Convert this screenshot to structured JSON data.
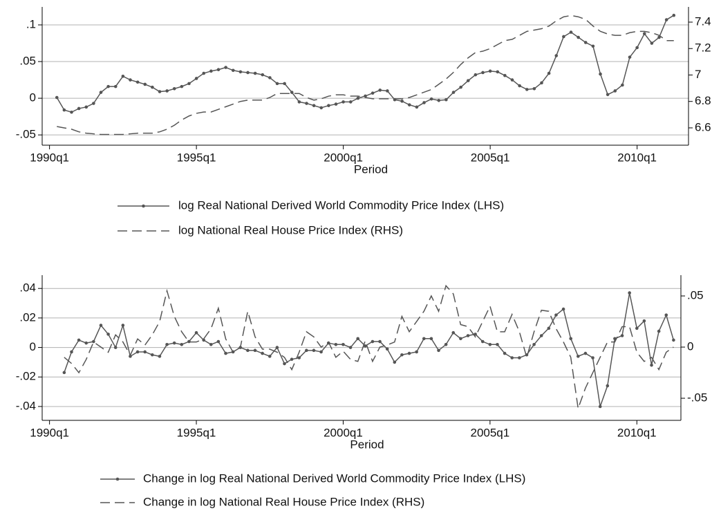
{
  "chart_data": [
    {
      "type": "line",
      "xlabel": "Period",
      "grid": true,
      "x": [
        "1990q2",
        "1990q3",
        "1990q4",
        "1991q1",
        "1991q2",
        "1991q3",
        "1991q4",
        "1992q1",
        "1992q2",
        "1992q3",
        "1992q4",
        "1993q1",
        "1993q2",
        "1993q3",
        "1993q4",
        "1994q1",
        "1994q2",
        "1994q3",
        "1994q4",
        "1995q1",
        "1995q2",
        "1995q3",
        "1995q4",
        "1996q1",
        "1996q2",
        "1996q3",
        "1996q4",
        "1997q1",
        "1997q2",
        "1997q3",
        "1997q4",
        "1998q1",
        "1998q2",
        "1998q3",
        "1998q4",
        "1999q1",
        "1999q2",
        "1999q3",
        "1999q4",
        "2000q1",
        "2000q2",
        "2000q3",
        "2000q4",
        "2001q1",
        "2001q2",
        "2001q3",
        "2001q4",
        "2002q1",
        "2002q2",
        "2002q3",
        "2002q4",
        "2003q1",
        "2003q2",
        "2003q3",
        "2003q4",
        "2004q1",
        "2004q2",
        "2004q3",
        "2004q4",
        "2005q1",
        "2005q2",
        "2005q3",
        "2005q4",
        "2006q1",
        "2006q2",
        "2006q3",
        "2006q4",
        "2007q1",
        "2007q2",
        "2007q3",
        "2007q4",
        "2008q1",
        "2008q2",
        "2008q3",
        "2008q4",
        "2009q1",
        "2009q2",
        "2009q3",
        "2009q4",
        "2010q1",
        "2010q2",
        "2010q3",
        "2010q4",
        "2011q1",
        "2011q2"
      ],
      "xlim": [
        "1989q4",
        "2011q4"
      ],
      "xticks": [
        {
          "value": "1990q1",
          "label": "1990q1"
        },
        {
          "value": "1995q1",
          "label": "1995q1"
        },
        {
          "value": "2000q1",
          "label": "2000q1"
        },
        {
          "value": "2005q1",
          "label": "2005q1"
        },
        {
          "value": "2010q1",
          "label": "2010q1"
        }
      ],
      "ylim": [
        -0.064,
        0.1245
      ],
      "yticks": [
        {
          "value": -0.05,
          "label": "-.05"
        },
        0,
        {
          "value": 0.05,
          "label": ".05"
        },
        {
          "value": 0.1,
          "label": ".1"
        }
      ],
      "y2lim": [
        6.469,
        7.515
      ],
      "y2ticks": [
        6.6,
        6.8,
        7,
        7.2,
        7.4
      ],
      "series": [
        {
          "name": "log Real National Derived World Commodity Price Index (LHS)",
          "color": "#555555",
          "line_style": "solid",
          "marker": "circle",
          "values": [
            0.001,
            -0.016,
            -0.019,
            -0.014,
            -0.012,
            -0.007,
            0.008,
            0.016,
            0.016,
            0.03,
            0.025,
            0.022,
            0.019,
            0.015,
            0.009,
            0.01,
            0.013,
            0.016,
            0.02,
            0.027,
            0.034,
            0.037,
            0.039,
            0.042,
            0.038,
            0.036,
            0.035,
            0.034,
            0.032,
            0.028,
            0.02,
            0.02,
            0.008,
            -0.005,
            -0.007,
            -0.01,
            -0.013,
            -0.01,
            -0.008,
            -0.005,
            -0.005,
            0.0,
            0.003,
            0.007,
            0.011,
            0.01,
            -0.002,
            -0.004,
            -0.009,
            -0.012,
            -0.006,
            -0.001,
            -0.003,
            -0.002,
            0.008,
            0.015,
            0.024,
            0.032,
            0.035,
            0.037,
            0.036,
            0.031,
            0.025,
            0.017,
            0.012,
            0.013,
            0.021,
            0.034,
            0.058,
            0.084,
            0.09,
            0.083,
            0.076,
            0.071,
            0.033,
            0.005,
            0.01,
            0.018,
            0.056,
            0.069,
            0.088,
            0.075,
            0.083,
            0.107,
            0.113
          ]
        },
        {
          "name": "log National Real House Price Index (RHS)",
          "color": "#555555",
          "line_style": "dashed",
          "axis": "y2",
          "values": [
            6.61,
            6.6,
            6.59,
            6.57,
            6.56,
            6.555,
            6.55,
            6.55,
            6.55,
            6.55,
            6.555,
            6.56,
            6.56,
            6.56,
            6.57,
            6.59,
            6.62,
            6.66,
            6.69,
            6.71,
            6.72,
            6.72,
            6.74,
            6.76,
            6.78,
            6.8,
            6.81,
            6.81,
            6.81,
            6.83,
            6.86,
            6.86,
            6.86,
            6.86,
            6.83,
            6.81,
            6.82,
            6.84,
            6.85,
            6.85,
            6.84,
            6.84,
            6.83,
            6.82,
            6.82,
            6.82,
            6.82,
            6.82,
            6.83,
            6.85,
            6.87,
            6.89,
            6.93,
            6.97,
            7.02,
            7.08,
            7.13,
            7.17,
            7.18,
            7.2,
            7.23,
            7.26,
            7.27,
            7.3,
            7.33,
            7.34,
            7.35,
            7.37,
            7.41,
            7.44,
            7.45,
            7.44,
            7.42,
            7.37,
            7.33,
            7.31,
            7.3,
            7.3,
            7.32,
            7.33,
            7.33,
            7.32,
            7.3,
            7.26,
            7.26
          ]
        }
      ]
    },
    {
      "type": "line",
      "xlabel": "Period",
      "grid": true,
      "x": [
        "1990q3",
        "1990q4",
        "1991q1",
        "1991q2",
        "1991q3",
        "1991q4",
        "1992q1",
        "1992q2",
        "1992q3",
        "1992q4",
        "1993q1",
        "1993q2",
        "1993q3",
        "1993q4",
        "1994q1",
        "1994q2",
        "1994q3",
        "1994q4",
        "1995q1",
        "1995q2",
        "1995q3",
        "1995q4",
        "1996q1",
        "1996q2",
        "1996q3",
        "1996q4",
        "1997q1",
        "1997q2",
        "1997q3",
        "1997q4",
        "1998q1",
        "1998q2",
        "1998q3",
        "1998q4",
        "1999q1",
        "1999q2",
        "1999q3",
        "1999q4",
        "2000q1",
        "2000q2",
        "2000q3",
        "2000q4",
        "2001q1",
        "2001q2",
        "2001q3",
        "2001q4",
        "2002q1",
        "2002q2",
        "2002q3",
        "2002q4",
        "2003q1",
        "2003q2",
        "2003q3",
        "2003q4",
        "2004q1",
        "2004q2",
        "2004q3",
        "2004q4",
        "2005q1",
        "2005q2",
        "2005q3",
        "2005q4",
        "2006q1",
        "2006q2",
        "2006q3",
        "2006q4",
        "2007q1",
        "2007q2",
        "2007q3",
        "2007q4",
        "2008q1",
        "2008q2",
        "2008q3",
        "2008q4",
        "2009q1",
        "2009q2",
        "2009q3",
        "2009q4",
        "2010q1",
        "2010q2",
        "2010q3",
        "2010q4",
        "2011q1",
        "2011q2"
      ],
      "xlim": [
        "1989q4",
        "2011q3"
      ],
      "xticks": [
        {
          "value": "1990q1",
          "label": "1990q1"
        },
        {
          "value": "1995q1",
          "label": "1995q1"
        },
        {
          "value": "2000q1",
          "label": "2000q1"
        },
        {
          "value": "2005q1",
          "label": "2005q1"
        },
        {
          "value": "2010q1",
          "label": "2010q1"
        }
      ],
      "ylim": [
        -0.0494,
        0.049
      ],
      "yticks": [
        {
          "value": -0.04,
          "label": "-.04"
        },
        {
          "value": -0.02,
          "label": "-.02"
        },
        0,
        {
          "value": 0.02,
          "label": ".02"
        },
        {
          "value": 0.04,
          "label": ".04"
        }
      ],
      "y2lim": [
        -0.0716,
        0.0703
      ],
      "y2ticks": [
        {
          "value": -0.05,
          "label": "-.05"
        },
        0,
        {
          "value": 0.05,
          "label": ".05"
        }
      ],
      "series": [
        {
          "name": "Change in log Real National Derived World Commodity Price Index (LHS)",
          "color": "#555555",
          "line_style": "solid",
          "marker": "circle",
          "values": [
            -0.017,
            -0.003,
            0.005,
            0.003,
            0.004,
            0.015,
            0.009,
            0.0,
            0.015,
            -0.006,
            -0.003,
            -0.003,
            -0.005,
            -0.006,
            0.002,
            0.003,
            0.002,
            0.004,
            0.01,
            0.005,
            0.002,
            0.004,
            -0.004,
            -0.003,
            0.0,
            -0.002,
            -0.002,
            -0.004,
            -0.006,
            0.0,
            -0.011,
            -0.008,
            -0.007,
            -0.002,
            -0.002,
            -0.003,
            0.003,
            0.002,
            0.002,
            0.0,
            0.006,
            0.001,
            0.004,
            0.004,
            -0.001,
            -0.01,
            -0.005,
            -0.004,
            -0.003,
            0.006,
            0.006,
            -0.002,
            0.002,
            0.01,
            0.006,
            0.008,
            0.009,
            0.004,
            0.002,
            0.002,
            -0.004,
            -0.007,
            -0.007,
            -0.005,
            0.002,
            0.008,
            0.013,
            0.022,
            0.026,
            0.006,
            -0.006,
            -0.004,
            -0.007,
            -0.04,
            -0.026,
            0.006,
            0.008,
            0.037,
            0.013,
            0.018,
            -0.012,
            0.011,
            0.022,
            0.005
          ]
        },
        {
          "name": "Change in log National Real House Price Index (RHS)",
          "color": "#555555",
          "line_style": "dashed",
          "axis": "y2",
          "values": [
            -0.01,
            -0.016,
            -0.025,
            -0.012,
            0.005,
            0.0,
            -0.005,
            0.012,
            0.005,
            -0.008,
            0.008,
            0.002,
            0.012,
            0.025,
            0.055,
            0.03,
            0.015,
            0.005,
            0.005,
            0.008,
            0.018,
            0.038,
            0.008,
            -0.005,
            0.0,
            0.035,
            0.01,
            -0.002,
            -0.002,
            -0.005,
            -0.01,
            -0.022,
            -0.005,
            0.015,
            0.01,
            0.0,
            0.005,
            -0.01,
            -0.004,
            -0.012,
            -0.014,
            0.006,
            -0.014,
            0.0,
            0.002,
            0.005,
            0.03,
            0.015,
            0.025,
            0.035,
            0.05,
            0.035,
            0.06,
            0.052,
            0.022,
            0.02,
            0.01,
            0.025,
            0.04,
            0.015,
            0.015,
            0.032,
            0.015,
            -0.01,
            0.015,
            0.036,
            0.035,
            0.018,
            0.005,
            -0.01,
            -0.06,
            -0.04,
            -0.025,
            -0.01,
            0.005,
            0.005,
            0.02,
            0.02,
            -0.005,
            -0.014,
            -0.01,
            -0.022,
            -0.005,
            0.0
          ]
        }
      ]
    }
  ]
}
